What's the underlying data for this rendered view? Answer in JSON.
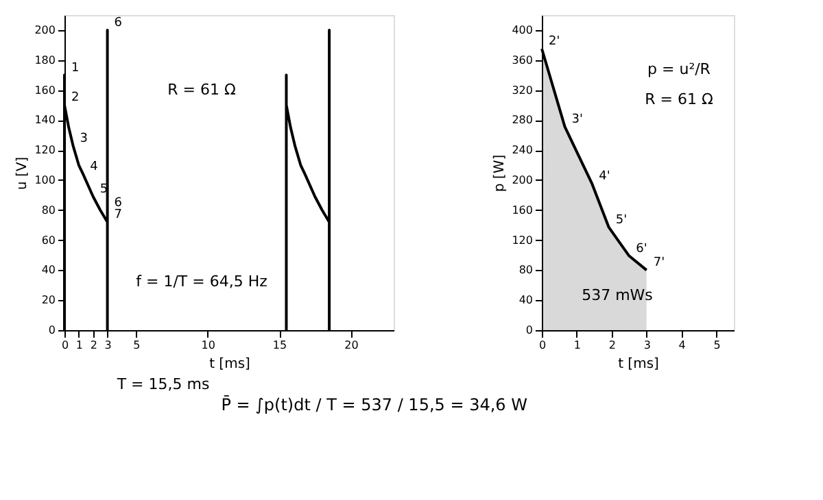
{
  "chart_data": [
    {
      "type": "line",
      "xlabel": "t [ms]",
      "ylabel": "u [V]",
      "xlim": [
        0,
        23
      ],
      "ylim": [
        0,
        210
      ],
      "xticks": [
        0,
        1,
        2,
        3,
        5,
        10,
        15,
        20
      ],
      "yticks": [
        0,
        20,
        40,
        60,
        80,
        100,
        120,
        140,
        160,
        180,
        200
      ],
      "grid": false,
      "legend": false,
      "series": [
        {
          "color": "#000000",
          "x": [
            0,
            0,
            0,
            0.3,
            0.6,
            1.0,
            1.3,
            2.0,
            2.5,
            3.0,
            3,
            3
          ],
          "values": [
            0,
            170,
            150,
            135,
            123,
            110,
            104,
            89,
            80,
            72,
            200,
            0
          ]
        },
        {
          "color": "#000000",
          "x": [
            15.5,
            15.5,
            15.5,
            15.8,
            16.1,
            16.5,
            16.8,
            17.5,
            18.0,
            18.5,
            18.5,
            18.5
          ],
          "values": [
            0,
            170,
            150,
            135,
            123,
            110,
            104,
            89,
            80,
            72,
            200,
            0
          ]
        }
      ],
      "annotations": [
        {
          "text": "1",
          "x": 0,
          "y": 170
        },
        {
          "text": "2",
          "x": 0,
          "y": 150
        },
        {
          "text": "3",
          "x": 0.6,
          "y": 123
        },
        {
          "text": "4",
          "x": 1.3,
          "y": 104
        },
        {
          "text": "5",
          "x": 2,
          "y": 89
        },
        {
          "text": "6",
          "x": 3,
          "y": 200
        },
        {
          "text": "6",
          "x": 3,
          "y": 80
        },
        {
          "text": "7",
          "x": 3,
          "y": 72
        },
        "R = 61 Ω",
        "f = 1/T = 64,5 Hz",
        "T = 15,5 ms",
        "P̄ = ∫p(t)dt / T = 537 / 15,5 = 34,6 W"
      ]
    },
    {
      "type": "area",
      "xlabel": "t [ms]",
      "ylabel": "p [W]",
      "xlim": [
        0,
        5.5
      ],
      "ylim": [
        0,
        420
      ],
      "xticks": [
        0,
        1,
        2,
        3,
        4,
        5
      ],
      "yticks": [
        0,
        40,
        80,
        120,
        160,
        200,
        240,
        280,
        320,
        360,
        400
      ],
      "grid": false,
      "legend": false,
      "series": [
        {
          "color": "#000000",
          "x": [
            0,
            0.66,
            1.44,
            1.92,
            2.5,
            3
          ],
          "values": [
            375,
            271,
            195,
            137,
            99,
            80
          ]
        }
      ],
      "annotations": [
        {
          "text": "2'",
          "x": 0,
          "y": 375
        },
        {
          "text": "3'",
          "x": 0.66,
          "y": 271
        },
        {
          "text": "4'",
          "x": 1.44,
          "y": 195
        },
        {
          "text": "5'",
          "x": 1.92,
          "y": 137
        },
        {
          "text": "6'",
          "x": 2.5,
          "y": 99
        },
        {
          "text": "7'",
          "x": 3,
          "y": 80
        },
        "p = u²/R",
        "R = 61 Ω",
        "537 mWs"
      ]
    }
  ]
}
